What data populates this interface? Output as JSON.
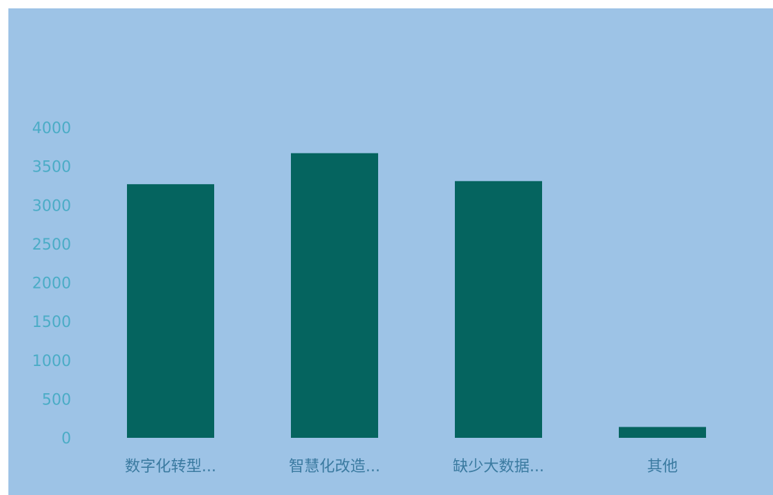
{
  "colors": {
    "panel_background": "#9dc3e6",
    "bar": "#05645f",
    "y_tick_text": "#4bacc6",
    "x_tick_text": "#3a7aa0"
  },
  "chart_data": {
    "type": "bar",
    "categories": [
      "数字化转型...",
      "智慧化改造...",
      "缺少大数据...",
      "其他"
    ],
    "values": [
      3270,
      3670,
      3310,
      140
    ],
    "ylim": [
      0,
      4000
    ],
    "yticks": [
      0,
      500,
      1000,
      1500,
      2000,
      2500,
      3000,
      3500,
      4000
    ],
    "grid": false,
    "legend": "none"
  }
}
